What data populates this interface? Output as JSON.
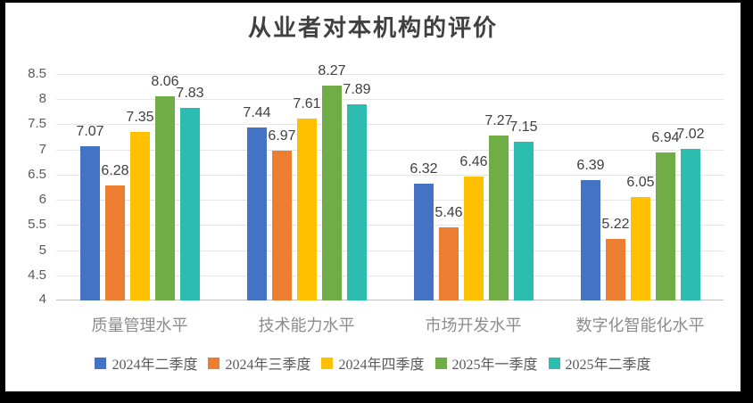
{
  "chart_data": {
    "type": "bar",
    "title": "从业者对本机构的评价",
    "categories": [
      "质量管理水平",
      "技术能力水平",
      "市场开发水平",
      "数字化智能化水平"
    ],
    "series": [
      {
        "name": "2024年二季度",
        "color": "#4472C4",
        "values": [
          7.07,
          7.44,
          6.32,
          6.39
        ]
      },
      {
        "name": "2024年三季度",
        "color": "#ED7D31",
        "values": [
          6.28,
          6.97,
          5.46,
          5.22
        ]
      },
      {
        "name": "2024年四季度",
        "color": "#FFC000",
        "values": [
          7.35,
          7.61,
          6.46,
          6.05
        ]
      },
      {
        "name": "2025年一季度",
        "color": "#70AD47",
        "values": [
          8.06,
          8.27,
          7.27,
          6.94
        ]
      },
      {
        "name": "2025年二季度",
        "color": "#2CBDB0",
        "values": [
          7.83,
          7.89,
          7.15,
          7.02
        ]
      }
    ],
    "ylim": [
      4,
      8.5
    ],
    "ytick_step": 0.5,
    "yticks": [
      "8.5",
      "8",
      "7.5",
      "7",
      "6.5",
      "6",
      "5.5",
      "5",
      "4.5",
      "4"
    ],
    "grid": true,
    "legend_position": "bottom",
    "data_labels": true,
    "label_decimals": 2,
    "style_colors": {
      "title_text": "#404040",
      "value_label_text": "#404040",
      "axis_tick_text": "#595959",
      "category_text": "#8c8c8c",
      "legend_text": "#595959",
      "gridline": "#e6e6e6",
      "axis_line": "#c0c0c0",
      "frame": "#000000",
      "background": "#ffffff"
    }
  }
}
